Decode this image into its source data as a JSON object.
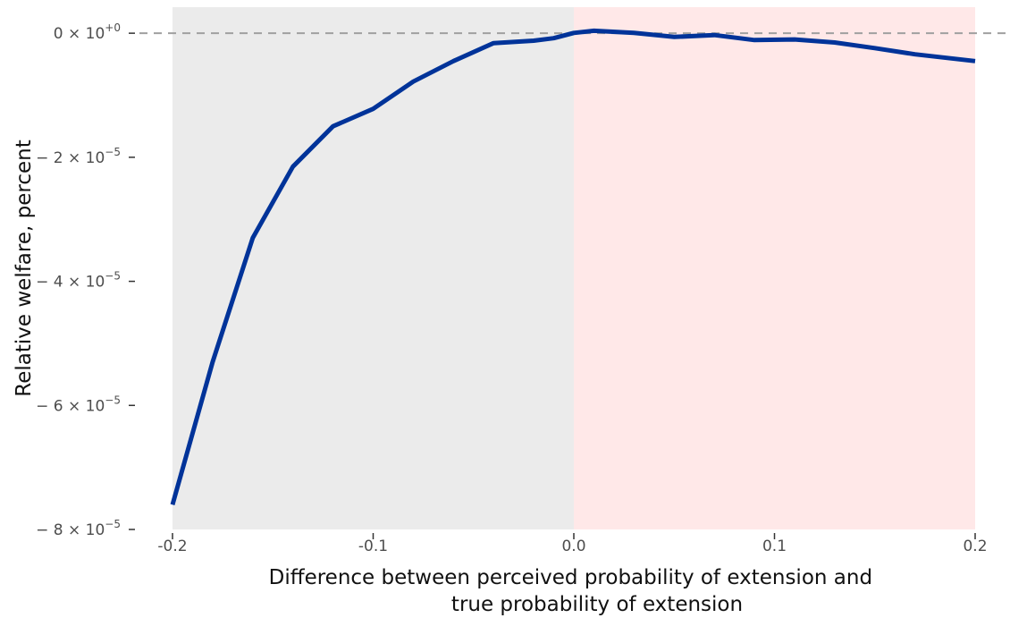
{
  "chart_data": {
    "type": "line",
    "title": "",
    "xlabel_lines": [
      "Difference between perceived probability of extension and",
      "true probability of extension"
    ],
    "ylabel": "Relative welfare, percent",
    "xlim": [
      -0.2,
      0.2
    ],
    "ylim": [
      -8e-05,
      4.2e-06
    ],
    "x_ticks": [
      {
        "value": -0.2,
        "label": "-0.2"
      },
      {
        "value": -0.1,
        "label": "-0.1"
      },
      {
        "value": 0.0,
        "label": "0.0"
      },
      {
        "value": 0.1,
        "label": "0.1"
      },
      {
        "value": 0.2,
        "label": "0.2"
      }
    ],
    "y_ticks": [
      {
        "value": 0,
        "mantissa": "0",
        "exponent": "+0"
      },
      {
        "value": -2e-05,
        "mantissa": "− 2",
        "exponent": "−5"
      },
      {
        "value": -4e-05,
        "mantissa": "− 4",
        "exponent": "−5"
      },
      {
        "value": -6e-05,
        "mantissa": "− 6",
        "exponent": "−5"
      },
      {
        "value": -8e-05,
        "mantissa": "− 8",
        "exponent": "−5"
      }
    ],
    "times_sign": "× 10",
    "regions": [
      {
        "x0": -0.2,
        "x1": 0.0,
        "color": "#ebebeb"
      },
      {
        "x0": 0.0,
        "x1": 0.2,
        "color": "#ffe8e8"
      }
    ],
    "reference_line": {
      "y": 0,
      "color": "#a0a0a0"
    },
    "series": [
      {
        "color": "#003399",
        "x": [
          -0.2,
          -0.18,
          -0.16,
          -0.14,
          -0.12,
          -0.1,
          -0.08,
          -0.06,
          -0.04,
          -0.02,
          -0.01,
          0.0,
          0.01,
          0.03,
          0.05,
          0.07,
          0.09,
          0.11,
          0.13,
          0.15,
          0.17,
          0.2
        ],
        "values": [
          -7.6e-05,
          -5.3e-05,
          -3.3e-05,
          -2.15e-05,
          -1.5e-05,
          -1.22e-05,
          -7.8e-06,
          -4.5e-06,
          -1.6e-06,
          -1.2e-06,
          -8e-07,
          5e-08,
          4e-07,
          5e-08,
          -6e-07,
          -3e-07,
          -1.1e-06,
          -1e-06,
          -1.5e-06,
          -2.4e-06,
          -3.4e-06,
          -4.5e-06
        ]
      }
    ]
  }
}
